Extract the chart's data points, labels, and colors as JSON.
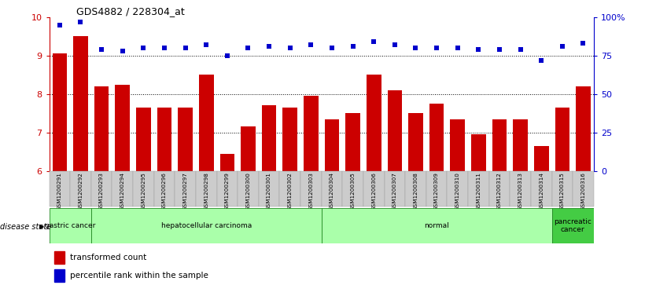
{
  "title": "GDS4882 / 228304_at",
  "samples": [
    "GSM1200291",
    "GSM1200292",
    "GSM1200293",
    "GSM1200294",
    "GSM1200295",
    "GSM1200296",
    "GSM1200297",
    "GSM1200298",
    "GSM1200299",
    "GSM1200300",
    "GSM1200301",
    "GSM1200302",
    "GSM1200303",
    "GSM1200304",
    "GSM1200305",
    "GSM1200306",
    "GSM1200307",
    "GSM1200308",
    "GSM1200309",
    "GSM1200310",
    "GSM1200311",
    "GSM1200312",
    "GSM1200313",
    "GSM1200314",
    "GSM1200315",
    "GSM1200316"
  ],
  "bar_values": [
    9.05,
    9.5,
    8.2,
    8.25,
    7.65,
    7.65,
    7.65,
    8.5,
    6.45,
    7.15,
    7.7,
    7.65,
    7.95,
    7.35,
    7.5,
    8.5,
    8.1,
    7.5,
    7.75,
    7.35,
    6.95,
    7.35,
    7.35,
    6.65,
    7.65,
    8.2
  ],
  "percentile_values": [
    95,
    97,
    79,
    78,
    80,
    80,
    80,
    82,
    75,
    80,
    81,
    80,
    82,
    80,
    81,
    84,
    82,
    80,
    80,
    80,
    79,
    79,
    79,
    72,
    81,
    83
  ],
  "bar_color": "#CC0000",
  "dot_color": "#0000CC",
  "ylim_left": [
    6,
    10
  ],
  "ylim_right": [
    0,
    100
  ],
  "yticks_left": [
    6,
    7,
    8,
    9,
    10
  ],
  "yticks_right": [
    0,
    25,
    50,
    75,
    100
  ],
  "ytick_labels_right": [
    "0",
    "25",
    "50",
    "75",
    "100%"
  ],
  "disease_groups": [
    {
      "label": "gastric cancer",
      "start": 0,
      "end": 2,
      "color": "#aaffaa"
    },
    {
      "label": "hepatocellular carcinoma",
      "start": 2,
      "end": 13,
      "color": "#aaffaa"
    },
    {
      "label": "normal",
      "start": 13,
      "end": 24,
      "color": "#aaffaa"
    },
    {
      "label": "pancreatic\ncancer",
      "start": 24,
      "end": 26,
      "color": "#44cc44"
    }
  ],
  "legend_bar_label": "transformed count",
  "legend_dot_label": "percentile rank within the sample"
}
